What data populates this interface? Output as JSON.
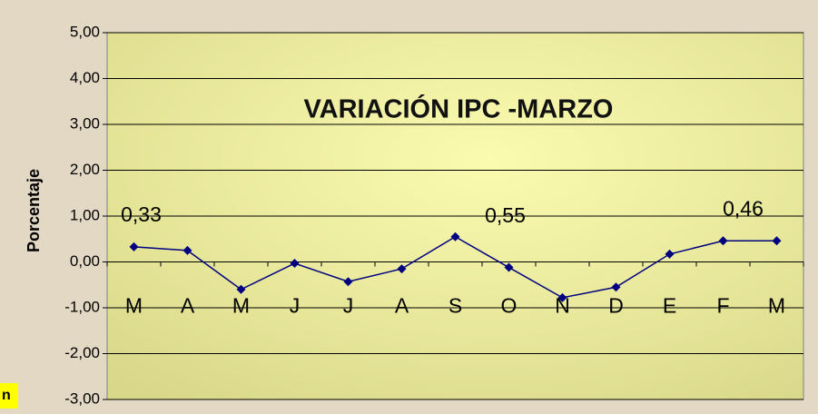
{
  "chart_data": {
    "type": "line",
    "title": "VARIACIÓN IPC -MARZO",
    "y_label": "Porcentaje",
    "side_note": "n",
    "categories": [
      "M",
      "A",
      "M",
      "J",
      "J",
      "A",
      "S",
      "O",
      "N",
      "D",
      "E",
      "F",
      "M"
    ],
    "series": [
      {
        "name": "IPC",
        "color": "#000080",
        "values": [
          0.33,
          0.25,
          -0.6,
          -0.03,
          -0.43,
          -0.15,
          0.55,
          -0.12,
          -0.78,
          -0.55,
          0.17,
          0.46,
          0.46
        ],
        "value_labels": [
          "0,33",
          null,
          null,
          null,
          null,
          null,
          "0,55",
          null,
          null,
          null,
          null,
          "0,46",
          null
        ]
      }
    ],
    "ylim": [
      -3,
      5
    ],
    "yticks": [
      {
        "value": -3,
        "label": "-3,00"
      },
      {
        "value": -2,
        "label": "-2,00"
      },
      {
        "value": -1,
        "label": "-1,00"
      },
      {
        "value": 0,
        "label": "0,00"
      },
      {
        "value": 1,
        "label": "1,00"
      },
      {
        "value": 2,
        "label": "2,00"
      },
      {
        "value": 3,
        "label": "3,00"
      },
      {
        "value": 4,
        "label": "4,00"
      },
      {
        "value": 5,
        "label": "5,00"
      }
    ],
    "grid": true
  }
}
